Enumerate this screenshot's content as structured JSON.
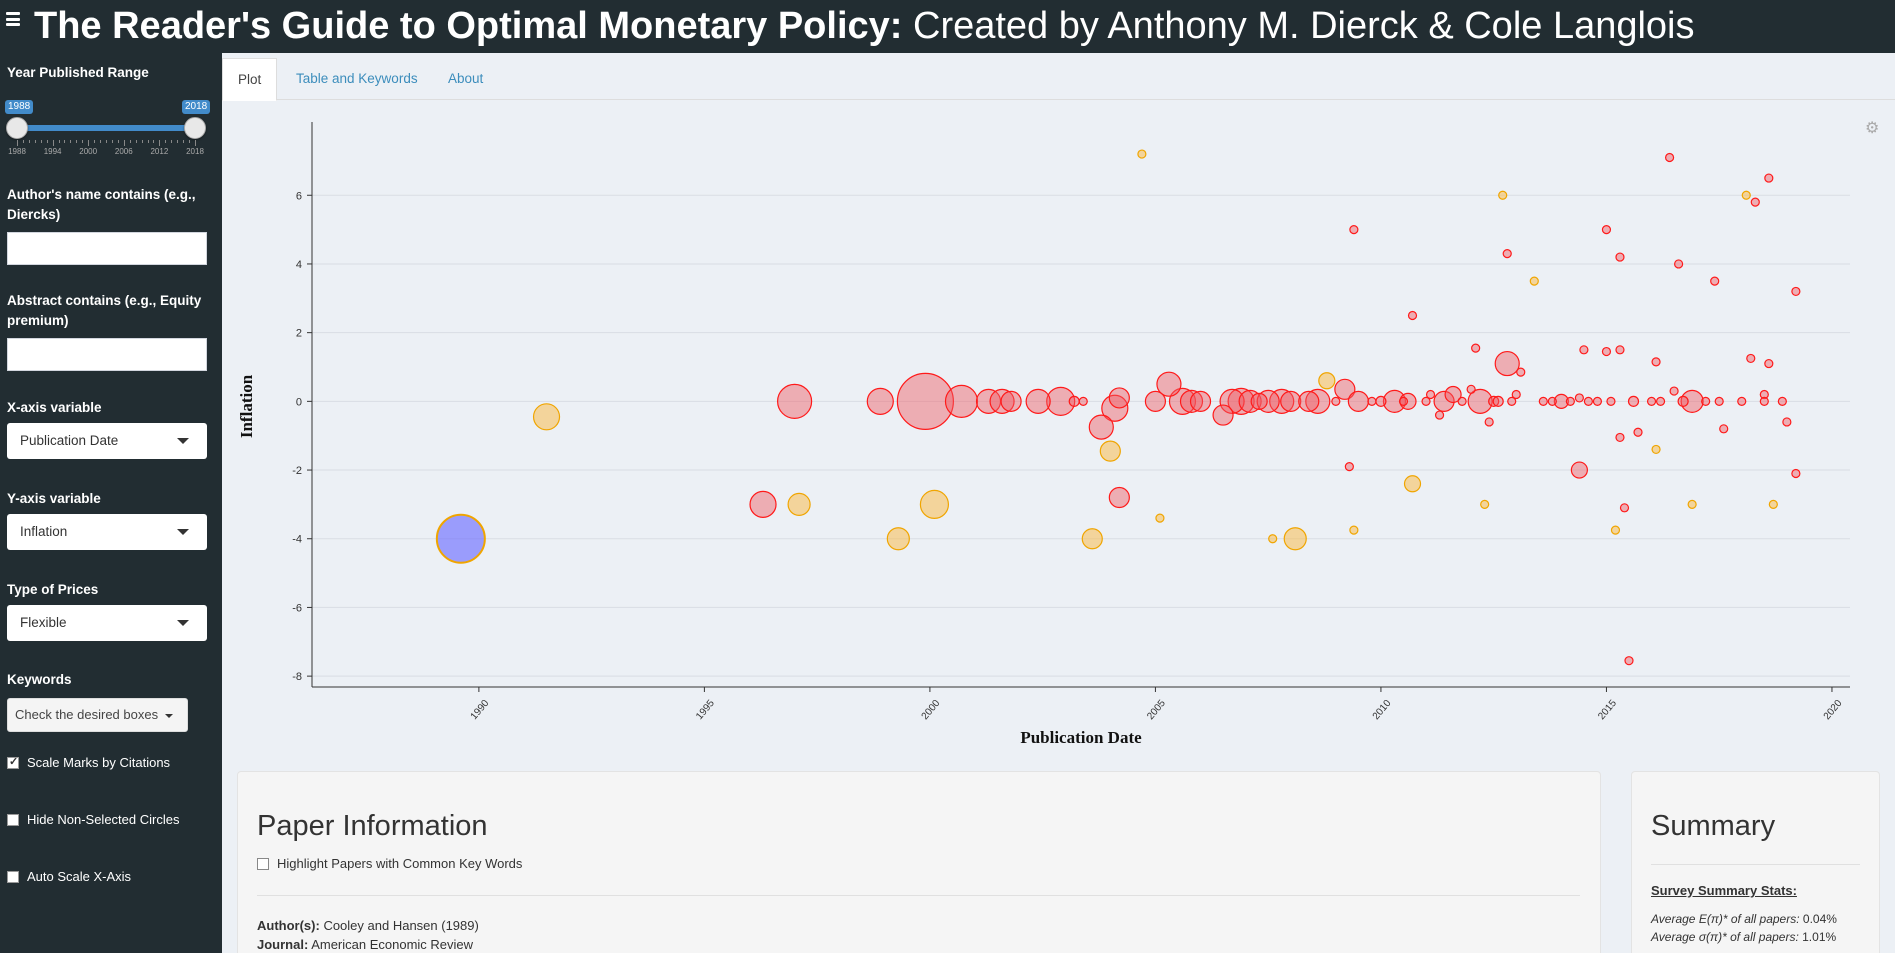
{
  "header": {
    "title_bold": "The Reader's Guide to Optimal Monetary Policy:",
    "title_rest": " Created by Anthony M. Dierck & Cole Langlois"
  },
  "sidebar": {
    "year_range_label": "Year Published Range",
    "year_min": "1988",
    "year_max": "2018",
    "year_ticks": [
      "1988",
      "1994",
      "2000",
      "2006",
      "2012",
      "2018"
    ],
    "author_label": "Author's name contains (e.g., Diercks)",
    "author_value": "",
    "abstract_label": "Abstract contains (e.g., Equity premium)",
    "abstract_value": "",
    "x_axis_label": "X-axis variable",
    "x_axis_value": "Publication Date",
    "y_axis_label": "Y-axis variable",
    "y_axis_value": "Inflation",
    "prices_label": "Type of Prices",
    "prices_value": "Flexible",
    "keywords_label": "Keywords",
    "keywords_button": "Check the desired boxes",
    "scale_marks_label": "Scale Marks by Citations",
    "scale_marks_checked": true,
    "hide_nonselected_label": "Hide Non-Selected Circles",
    "auto_scale_label": "Auto Scale X-Axis"
  },
  "tabs": [
    {
      "label": "Plot",
      "active": true
    },
    {
      "label": "Table and Keywords",
      "active": false
    },
    {
      "label": "About",
      "active": false
    }
  ],
  "chart_data": {
    "type": "scatter",
    "xlabel": "Publication Date",
    "ylabel": "Inflation",
    "xlim": [
      1986.3,
      2020.4
    ],
    "ylim": [
      -8.2,
      7.9
    ],
    "xticks": [
      1990,
      1995,
      2000,
      2005,
      2010,
      2015,
      2020
    ],
    "yticks": [
      -8,
      -6,
      -4,
      -2,
      0,
      2,
      4,
      6
    ],
    "grid": true,
    "colors": {
      "red": "#ff0000",
      "orange": "#f4a300",
      "blue": "#3355ff"
    },
    "points": [
      {
        "x": 1989.6,
        "y": -4.0,
        "r": 24,
        "c": "blue"
      },
      {
        "x": 1991.5,
        "y": -0.45,
        "r": 13,
        "c": "orange"
      },
      {
        "x": 1996.3,
        "y": -3.0,
        "r": 13,
        "c": "red"
      },
      {
        "x": 1997.0,
        "y": 0.0,
        "r": 17,
        "c": "red"
      },
      {
        "x": 1997.1,
        "y": -3.0,
        "r": 11,
        "c": "orange"
      },
      {
        "x": 1998.9,
        "y": 0.0,
        "r": 13,
        "c": "red"
      },
      {
        "x": 1999.3,
        "y": -4.0,
        "r": 11,
        "c": "orange"
      },
      {
        "x": 1999.9,
        "y": 0.0,
        "r": 28,
        "c": "red"
      },
      {
        "x": 2000.1,
        "y": -3.0,
        "r": 14,
        "c": "orange"
      },
      {
        "x": 2000.7,
        "y": 0.0,
        "r": 16,
        "c": "red"
      },
      {
        "x": 2001.3,
        "y": 0.0,
        "r": 12,
        "c": "red"
      },
      {
        "x": 2001.6,
        "y": 0.0,
        "r": 12,
        "c": "red"
      },
      {
        "x": 2001.8,
        "y": 0.0,
        "r": 10,
        "c": "red"
      },
      {
        "x": 2002.4,
        "y": 0.0,
        "r": 12,
        "c": "red"
      },
      {
        "x": 2002.9,
        "y": 0.0,
        "r": 14,
        "c": "red"
      },
      {
        "x": 2003.2,
        "y": 0.0,
        "r": 5,
        "c": "red"
      },
      {
        "x": 2003.4,
        "y": 0.0,
        "r": 4,
        "c": "red"
      },
      {
        "x": 2003.6,
        "y": -4.0,
        "r": 10,
        "c": "orange"
      },
      {
        "x": 2003.8,
        "y": -0.75,
        "r": 12,
        "c": "red"
      },
      {
        "x": 2004.0,
        "y": -1.45,
        "r": 10,
        "c": "orange"
      },
      {
        "x": 2004.1,
        "y": -0.2,
        "r": 13,
        "c": "red"
      },
      {
        "x": 2004.2,
        "y": 0.1,
        "r": 10,
        "c": "red"
      },
      {
        "x": 2004.2,
        "y": -2.8,
        "r": 10,
        "c": "red"
      },
      {
        "x": 2004.7,
        "y": 7.2,
        "r": 4,
        "c": "orange"
      },
      {
        "x": 2005.0,
        "y": 0.0,
        "r": 10,
        "c": "red"
      },
      {
        "x": 2005.1,
        "y": -3.4,
        "r": 4,
        "c": "orange"
      },
      {
        "x": 2005.3,
        "y": 0.5,
        "r": 12,
        "c": "red"
      },
      {
        "x": 2005.6,
        "y": 0.0,
        "r": 13,
        "c": "red"
      },
      {
        "x": 2005.8,
        "y": 0.0,
        "r": 11,
        "c": "red"
      },
      {
        "x": 2006.0,
        "y": 0.0,
        "r": 10,
        "c": "red"
      },
      {
        "x": 2006.5,
        "y": -0.4,
        "r": 10,
        "c": "red"
      },
      {
        "x": 2006.7,
        "y": 0.0,
        "r": 12,
        "c": "red"
      },
      {
        "x": 2006.9,
        "y": 0.0,
        "r": 13,
        "c": "red"
      },
      {
        "x": 2007.1,
        "y": 0.0,
        "r": 11,
        "c": "red"
      },
      {
        "x": 2007.3,
        "y": 0.0,
        "r": 8,
        "c": "red"
      },
      {
        "x": 2007.5,
        "y": 0.0,
        "r": 11,
        "c": "red"
      },
      {
        "x": 2007.6,
        "y": -4.0,
        "r": 4,
        "c": "orange"
      },
      {
        "x": 2007.8,
        "y": 0.0,
        "r": 12,
        "c": "red"
      },
      {
        "x": 2008.0,
        "y": 0.0,
        "r": 10,
        "c": "red"
      },
      {
        "x": 2008.1,
        "y": -4.0,
        "r": 11,
        "c": "orange"
      },
      {
        "x": 2008.4,
        "y": 0.0,
        "r": 10,
        "c": "red"
      },
      {
        "x": 2008.6,
        "y": 0.0,
        "r": 12,
        "c": "red"
      },
      {
        "x": 2008.8,
        "y": 0.6,
        "r": 8,
        "c": "orange"
      },
      {
        "x": 2009.0,
        "y": 0.0,
        "r": 4,
        "c": "red"
      },
      {
        "x": 2009.2,
        "y": 0.35,
        "r": 10,
        "c": "red"
      },
      {
        "x": 2009.3,
        "y": -1.9,
        "r": 4,
        "c": "red"
      },
      {
        "x": 2009.4,
        "y": 5.0,
        "r": 4,
        "c": "red"
      },
      {
        "x": 2009.4,
        "y": -3.75,
        "r": 4,
        "c": "orange"
      },
      {
        "x": 2009.5,
        "y": 0.0,
        "r": 10,
        "c": "red"
      },
      {
        "x": 2009.8,
        "y": 0.0,
        "r": 4,
        "c": "red"
      },
      {
        "x": 2010.0,
        "y": 0.0,
        "r": 5,
        "c": "red"
      },
      {
        "x": 2010.3,
        "y": 0.0,
        "r": 11,
        "c": "red"
      },
      {
        "x": 2010.5,
        "y": 0.0,
        "r": 4,
        "c": "red"
      },
      {
        "x": 2010.6,
        "y": 0.0,
        "r": 8,
        "c": "red"
      },
      {
        "x": 2010.7,
        "y": -2.4,
        "r": 8,
        "c": "orange"
      },
      {
        "x": 2010.7,
        "y": 2.5,
        "r": 4,
        "c": "red"
      },
      {
        "x": 2011.0,
        "y": 0.0,
        "r": 4,
        "c": "red"
      },
      {
        "x": 2011.1,
        "y": 0.2,
        "r": 4,
        "c": "red"
      },
      {
        "x": 2011.3,
        "y": -0.4,
        "r": 4,
        "c": "red"
      },
      {
        "x": 2011.4,
        "y": 0.0,
        "r": 10,
        "c": "red"
      },
      {
        "x": 2011.6,
        "y": 0.2,
        "r": 8,
        "c": "red"
      },
      {
        "x": 2011.8,
        "y": 0.0,
        "r": 4,
        "c": "red"
      },
      {
        "x": 2012.0,
        "y": 0.35,
        "r": 4,
        "c": "red"
      },
      {
        "x": 2012.1,
        "y": 1.55,
        "r": 4,
        "c": "red"
      },
      {
        "x": 2012.2,
        "y": 0.0,
        "r": 12,
        "c": "red"
      },
      {
        "x": 2012.3,
        "y": -3.0,
        "r": 4,
        "c": "orange"
      },
      {
        "x": 2012.4,
        "y": -0.6,
        "r": 4,
        "c": "red"
      },
      {
        "x": 2012.5,
        "y": 0.0,
        "r": 5,
        "c": "red"
      },
      {
        "x": 2012.6,
        "y": 0.0,
        "r": 5,
        "c": "red"
      },
      {
        "x": 2012.7,
        "y": 6.0,
        "r": 4,
        "c": "orange"
      },
      {
        "x": 2012.8,
        "y": 4.3,
        "r": 4,
        "c": "red"
      },
      {
        "x": 2012.8,
        "y": 1.1,
        "r": 12,
        "c": "red"
      },
      {
        "x": 2012.9,
        "y": 0.0,
        "r": 4,
        "c": "red"
      },
      {
        "x": 2013.0,
        "y": 0.2,
        "r": 4,
        "c": "red"
      },
      {
        "x": 2013.1,
        "y": 0.85,
        "r": 4,
        "c": "red"
      },
      {
        "x": 2013.4,
        "y": 3.5,
        "r": 4,
        "c": "orange"
      },
      {
        "x": 2013.6,
        "y": 0.0,
        "r": 4,
        "c": "red"
      },
      {
        "x": 2013.8,
        "y": 0.0,
        "r": 4,
        "c": "red"
      },
      {
        "x": 2014.0,
        "y": 0.0,
        "r": 7,
        "c": "red"
      },
      {
        "x": 2014.2,
        "y": 0.0,
        "r": 4,
        "c": "red"
      },
      {
        "x": 2014.4,
        "y": 0.1,
        "r": 4,
        "c": "red"
      },
      {
        "x": 2014.4,
        "y": -2.0,
        "r": 8,
        "c": "red"
      },
      {
        "x": 2014.5,
        "y": 1.5,
        "r": 4,
        "c": "red"
      },
      {
        "x": 2014.6,
        "y": 0.0,
        "r": 4,
        "c": "red"
      },
      {
        "x": 2014.8,
        "y": 0.0,
        "r": 4,
        "c": "red"
      },
      {
        "x": 2015.0,
        "y": 1.45,
        "r": 4,
        "c": "red"
      },
      {
        "x": 2015.0,
        "y": 5.0,
        "r": 4,
        "c": "red"
      },
      {
        "x": 2015.1,
        "y": 0.0,
        "r": 4,
        "c": "red"
      },
      {
        "x": 2015.2,
        "y": -3.75,
        "r": 4,
        "c": "orange"
      },
      {
        "x": 2015.3,
        "y": 4.2,
        "r": 4,
        "c": "red"
      },
      {
        "x": 2015.3,
        "y": 1.5,
        "r": 4,
        "c": "red"
      },
      {
        "x": 2015.3,
        "y": -1.05,
        "r": 4,
        "c": "red"
      },
      {
        "x": 2015.4,
        "y": -3.1,
        "r": 4,
        "c": "red"
      },
      {
        "x": 2015.5,
        "y": -7.55,
        "r": 4,
        "c": "red"
      },
      {
        "x": 2015.6,
        "y": 0.0,
        "r": 5,
        "c": "red"
      },
      {
        "x": 2015.7,
        "y": -0.9,
        "r": 4,
        "c": "red"
      },
      {
        "x": 2016.0,
        "y": 0.0,
        "r": 4,
        "c": "red"
      },
      {
        "x": 2016.1,
        "y": 1.15,
        "r": 4,
        "c": "red"
      },
      {
        "x": 2016.1,
        "y": -1.4,
        "r": 4,
        "c": "orange"
      },
      {
        "x": 2016.2,
        "y": 0.0,
        "r": 4,
        "c": "red"
      },
      {
        "x": 2016.4,
        "y": 7.1,
        "r": 4,
        "c": "red"
      },
      {
        "x": 2016.5,
        "y": 0.3,
        "r": 4,
        "c": "red"
      },
      {
        "x": 2016.6,
        "y": 4.0,
        "r": 4,
        "c": "red"
      },
      {
        "x": 2016.7,
        "y": 0.0,
        "r": 5,
        "c": "red"
      },
      {
        "x": 2016.9,
        "y": -3.0,
        "r": 4,
        "c": "orange"
      },
      {
        "x": 2016.9,
        "y": 0.0,
        "r": 11,
        "c": "red"
      },
      {
        "x": 2017.2,
        "y": 0.0,
        "r": 4,
        "c": "red"
      },
      {
        "x": 2017.4,
        "y": 3.5,
        "r": 4,
        "c": "red"
      },
      {
        "x": 2017.5,
        "y": 0.0,
        "r": 4,
        "c": "red"
      },
      {
        "x": 2017.6,
        "y": -0.8,
        "r": 4,
        "c": "red"
      },
      {
        "x": 2018.0,
        "y": 0.0,
        "r": 4,
        "c": "red"
      },
      {
        "x": 2018.1,
        "y": 6.0,
        "r": 4,
        "c": "orange"
      },
      {
        "x": 2018.2,
        "y": 1.25,
        "r": 4,
        "c": "red"
      },
      {
        "x": 2018.3,
        "y": 5.8,
        "r": 4,
        "c": "red"
      },
      {
        "x": 2018.5,
        "y": 0.2,
        "r": 4,
        "c": "red"
      },
      {
        "x": 2018.5,
        "y": 0.0,
        "r": 4,
        "c": "red"
      },
      {
        "x": 2018.6,
        "y": 1.1,
        "r": 4,
        "c": "red"
      },
      {
        "x": 2018.6,
        "y": 6.5,
        "r": 4,
        "c": "red"
      },
      {
        "x": 2018.7,
        "y": -3.0,
        "r": 4,
        "c": "orange"
      },
      {
        "x": 2018.9,
        "y": 0.0,
        "r": 4,
        "c": "red"
      },
      {
        "x": 2019.0,
        "y": -0.6,
        "r": 4,
        "c": "red"
      },
      {
        "x": 2019.2,
        "y": -2.1,
        "r": 4,
        "c": "red"
      },
      {
        "x": 2019.2,
        "y": 3.2,
        "r": 4,
        "c": "red"
      }
    ]
  },
  "paper_info": {
    "title": "Paper Information",
    "highlight_label": "Highlight Papers with Common Key Words",
    "authors_key": "Author(s):",
    "authors_value": " Cooley and Hansen (1989)",
    "journal_key": "Journal:",
    "journal_value": " American Economic Review"
  },
  "summary": {
    "title": "Summary",
    "subtitle": "Survey Summary Stats:",
    "line1_key": "Average E(π)* of all papers:",
    "line1_value": " 0.04%",
    "line2_key": "Average σ(π)* of all papers:",
    "line2_value": " 1.01%"
  }
}
